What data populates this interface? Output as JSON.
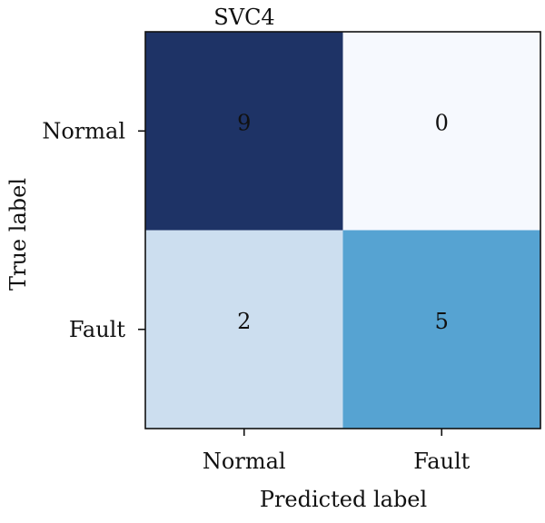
{
  "chart_data": {
    "type": "heatmap",
    "title": "SVC4",
    "xlabel": "Predicted label",
    "ylabel": "True label",
    "x_categories": [
      "Normal",
      "Fault"
    ],
    "y_categories": [
      "Normal",
      "Fault"
    ],
    "values": [
      [
        9,
        0
      ],
      [
        2,
        5
      ]
    ],
    "value_range": [
      0,
      9
    ],
    "colormap": [
      "#f7fbff",
      "#c6dbef",
      "#6baed6",
      "#2171b5",
      "#08306b"
    ],
    "cell_colors": [
      [
        "#1e3366",
        "#f6f9fe"
      ],
      [
        "#ccdeef",
        "#56a3d2"
      ]
    ],
    "grid": false
  }
}
